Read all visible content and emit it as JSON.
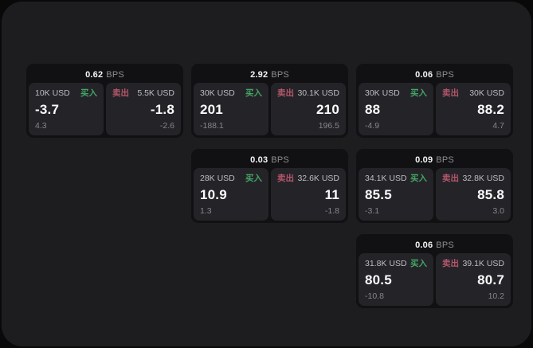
{
  "labels": {
    "buy": "买入",
    "sell": "卖出",
    "bps_unit": "BPS"
  },
  "colors": {
    "buy": "#44a566",
    "sell": "#b5566b",
    "surface": "#1d1d1f",
    "card": "#111113",
    "panel": "#242428"
  },
  "cards": [
    {
      "bps": "0.62",
      "row": 1,
      "col": 1,
      "buy": {
        "notional": "10K USD",
        "price": "-3.7",
        "change": "4.3"
      },
      "sell": {
        "notional": "5.5K USD",
        "price": "-1.8",
        "change": "-2.6"
      }
    },
    {
      "bps": "2.92",
      "row": 1,
      "col": 2,
      "buy": {
        "notional": "30K USD",
        "price": "201",
        "change": "-188.1"
      },
      "sell": {
        "notional": "30.1K USD",
        "price": "210",
        "change": "196.5"
      }
    },
    {
      "bps": "0.06",
      "row": 1,
      "col": 3,
      "buy": {
        "notional": "30K USD",
        "price": "88",
        "change": "-4.9"
      },
      "sell": {
        "notional": "30K USD",
        "price": "88.2",
        "change": "4.7"
      }
    },
    {
      "bps": "0.03",
      "row": 2,
      "col": 2,
      "buy": {
        "notional": "28K USD",
        "price": "10.9",
        "change": "1.3"
      },
      "sell": {
        "notional": "32.6K USD",
        "price": "11",
        "change": "-1.8"
      }
    },
    {
      "bps": "0.09",
      "row": 2,
      "col": 3,
      "buy": {
        "notional": "34.1K USD",
        "price": "85.5",
        "change": "-3.1"
      },
      "sell": {
        "notional": "32.8K USD",
        "price": "85.8",
        "change": "3.0"
      }
    },
    {
      "bps": "0.06",
      "row": 3,
      "col": 3,
      "buy": {
        "notional": "31.8K USD",
        "price": "80.5",
        "change": "-10.8"
      },
      "sell": {
        "notional": "39.1K USD",
        "price": "80.7",
        "change": "10.2"
      }
    }
  ]
}
